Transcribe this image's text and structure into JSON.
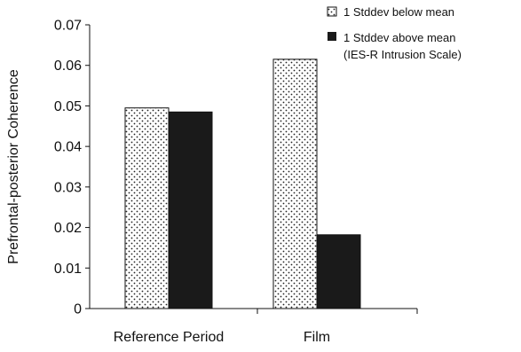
{
  "chart_data": {
    "type": "bar",
    "categories": [
      "Reference Period",
      "Film"
    ],
    "series": [
      {
        "name": "1 Stddev below mean",
        "values": [
          0.0495,
          0.0615
        ],
        "pattern": "dotted"
      },
      {
        "name": "1 Stddev above mean",
        "values": [
          0.0485,
          0.0182
        ],
        "color": "#1a1a1a"
      }
    ],
    "ylabel": "Prefrontal-posterior Coherence",
    "xlabel": "",
    "ylim": [
      0,
      0.07
    ],
    "yticks": [
      "0",
      "0.01",
      "0.02",
      "0.03",
      "0.04",
      "0.05",
      "0.06",
      "0.07"
    ],
    "legend": {
      "placement": "top-right",
      "entries": [
        "1 Stddev below mean",
        "1 Stddev above mean"
      ],
      "note": "(IES-R Intrusion Scale)"
    },
    "grid": false
  }
}
